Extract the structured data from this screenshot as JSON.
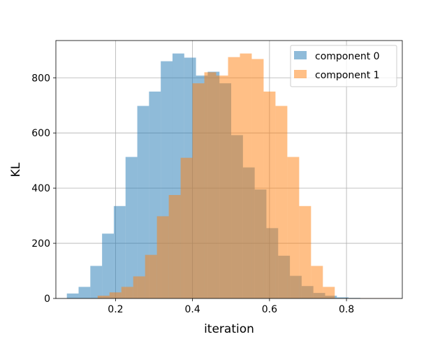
{
  "chart_data": {
    "type": "bar",
    "subtype": "histogram",
    "title": "",
    "xlabel": "iteration",
    "ylabel": "KL",
    "xlim": [
      0.045,
      0.945
    ],
    "ylim": [
      0,
      935
    ],
    "xticks": [
      0.2,
      0.4,
      0.6,
      0.8
    ],
    "xtick_labels": [
      "0.2",
      "0.4",
      "0.6",
      "0.8"
    ],
    "yticks": [
      0,
      200,
      400,
      600,
      800
    ],
    "ytick_labels": [
      "0",
      "200",
      "400",
      "600",
      "800"
    ],
    "grid": true,
    "legend": {
      "placement": "top-right",
      "entries": [
        "component 0",
        "component 1"
      ]
    },
    "series": [
      {
        "name": "component 0",
        "color": "#1f77b4",
        "alpha": 0.5,
        "bin_edges": [
          0.0735,
          0.104,
          0.1345,
          0.165,
          0.1955,
          0.226,
          0.2565,
          0.287,
          0.3175,
          0.348,
          0.3785,
          0.409,
          0.4395,
          0.47,
          0.5005,
          0.531,
          0.5615,
          0.592,
          0.6225,
          0.653,
          0.6835,
          0.714,
          0.7445,
          0.775,
          0.8055,
          0.836
        ],
        "counts": [
          18,
          42,
          118,
          235,
          335,
          513,
          698,
          750,
          860,
          888,
          873,
          808,
          822,
          780,
          592,
          475,
          395,
          255,
          155,
          82,
          45,
          20,
          10,
          4,
          2
        ]
      },
      {
        "name": "component 1",
        "color": "#ff7f0e",
        "alpha": 0.5,
        "bin_edges": [
          0.1535,
          0.1843,
          0.2151,
          0.2459,
          0.2767,
          0.3075,
          0.3383,
          0.3691,
          0.3999,
          0.4307,
          0.4615,
          0.4923,
          0.5231,
          0.5539,
          0.5847,
          0.6155,
          0.6463,
          0.6771,
          0.7079,
          0.7387,
          0.7695,
          0.8003,
          0.8311,
          0.8619,
          0.8927,
          0.9235
        ],
        "counts": [
          10,
          22,
          42,
          80,
          158,
          298,
          375,
          510,
          780,
          820,
          808,
          875,
          888,
          868,
          750,
          698,
          513,
          335,
          118,
          42,
          1,
          1,
          1,
          1,
          1
        ]
      }
    ]
  }
}
